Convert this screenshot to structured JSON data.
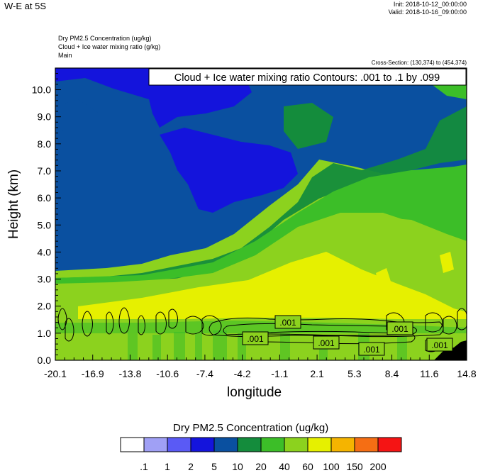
{
  "header": {
    "title": "W-E at 5S",
    "init": "Init: 2018-10-12_00:00:00",
    "valid": "Valid: 2018-10-16_09:00:00",
    "fields": [
      "Dry PM2.5 Concentration   (ug/kg)",
      "Cloud + Ice water mixing ratio   (g/kg)",
      "Main"
    ],
    "cross_section": "Cross-Section: (130,374) to (454,374)"
  },
  "chart_data": {
    "type": "heatmap",
    "title": "W-E at 5S",
    "xlabel": "longitude",
    "ylabel": "Height (km)",
    "x_ticks": [
      "-20.1",
      "-16.9",
      "-13.8",
      "-10.6",
      "-7.4",
      "-4.2",
      "-1.1",
      "2.1",
      "5.3",
      "8.4",
      "11.6",
      "14.8"
    ],
    "y_ticks": [
      "0.0",
      "1.0",
      "2.0",
      "3.0",
      "4.0",
      "5.0",
      "6.0",
      "7.0",
      "8.0",
      "9.0",
      "10.0"
    ],
    "xlim": [
      -20.1,
      14.8
    ],
    "ylim": [
      0,
      10.8
    ],
    "contour_legend": "Cloud + Ice water mixing ratio Contours: .001 to .1 by .099",
    "contour_labels": [
      ".001",
      ".001",
      ".001",
      ".001",
      ".001",
      ".001"
    ],
    "colorbar": {
      "title": "Dry PM2.5 Concentration  (ug/kg)",
      "labels": [
        ".1",
        "1",
        "2",
        "5",
        "10",
        "20",
        "40",
        "60",
        "100",
        "150",
        "200"
      ],
      "colors": [
        "#ffffff",
        "#a0a0f5",
        "#5a5af5",
        "#1414dc",
        "#0a50a0",
        "#148c3c",
        "#3cbe28",
        "#8cd21e",
        "#e6f000",
        "#f5b400",
        "#f56e14",
        "#f51414"
      ]
    },
    "legend_placement": "bottom",
    "grid": false
  }
}
